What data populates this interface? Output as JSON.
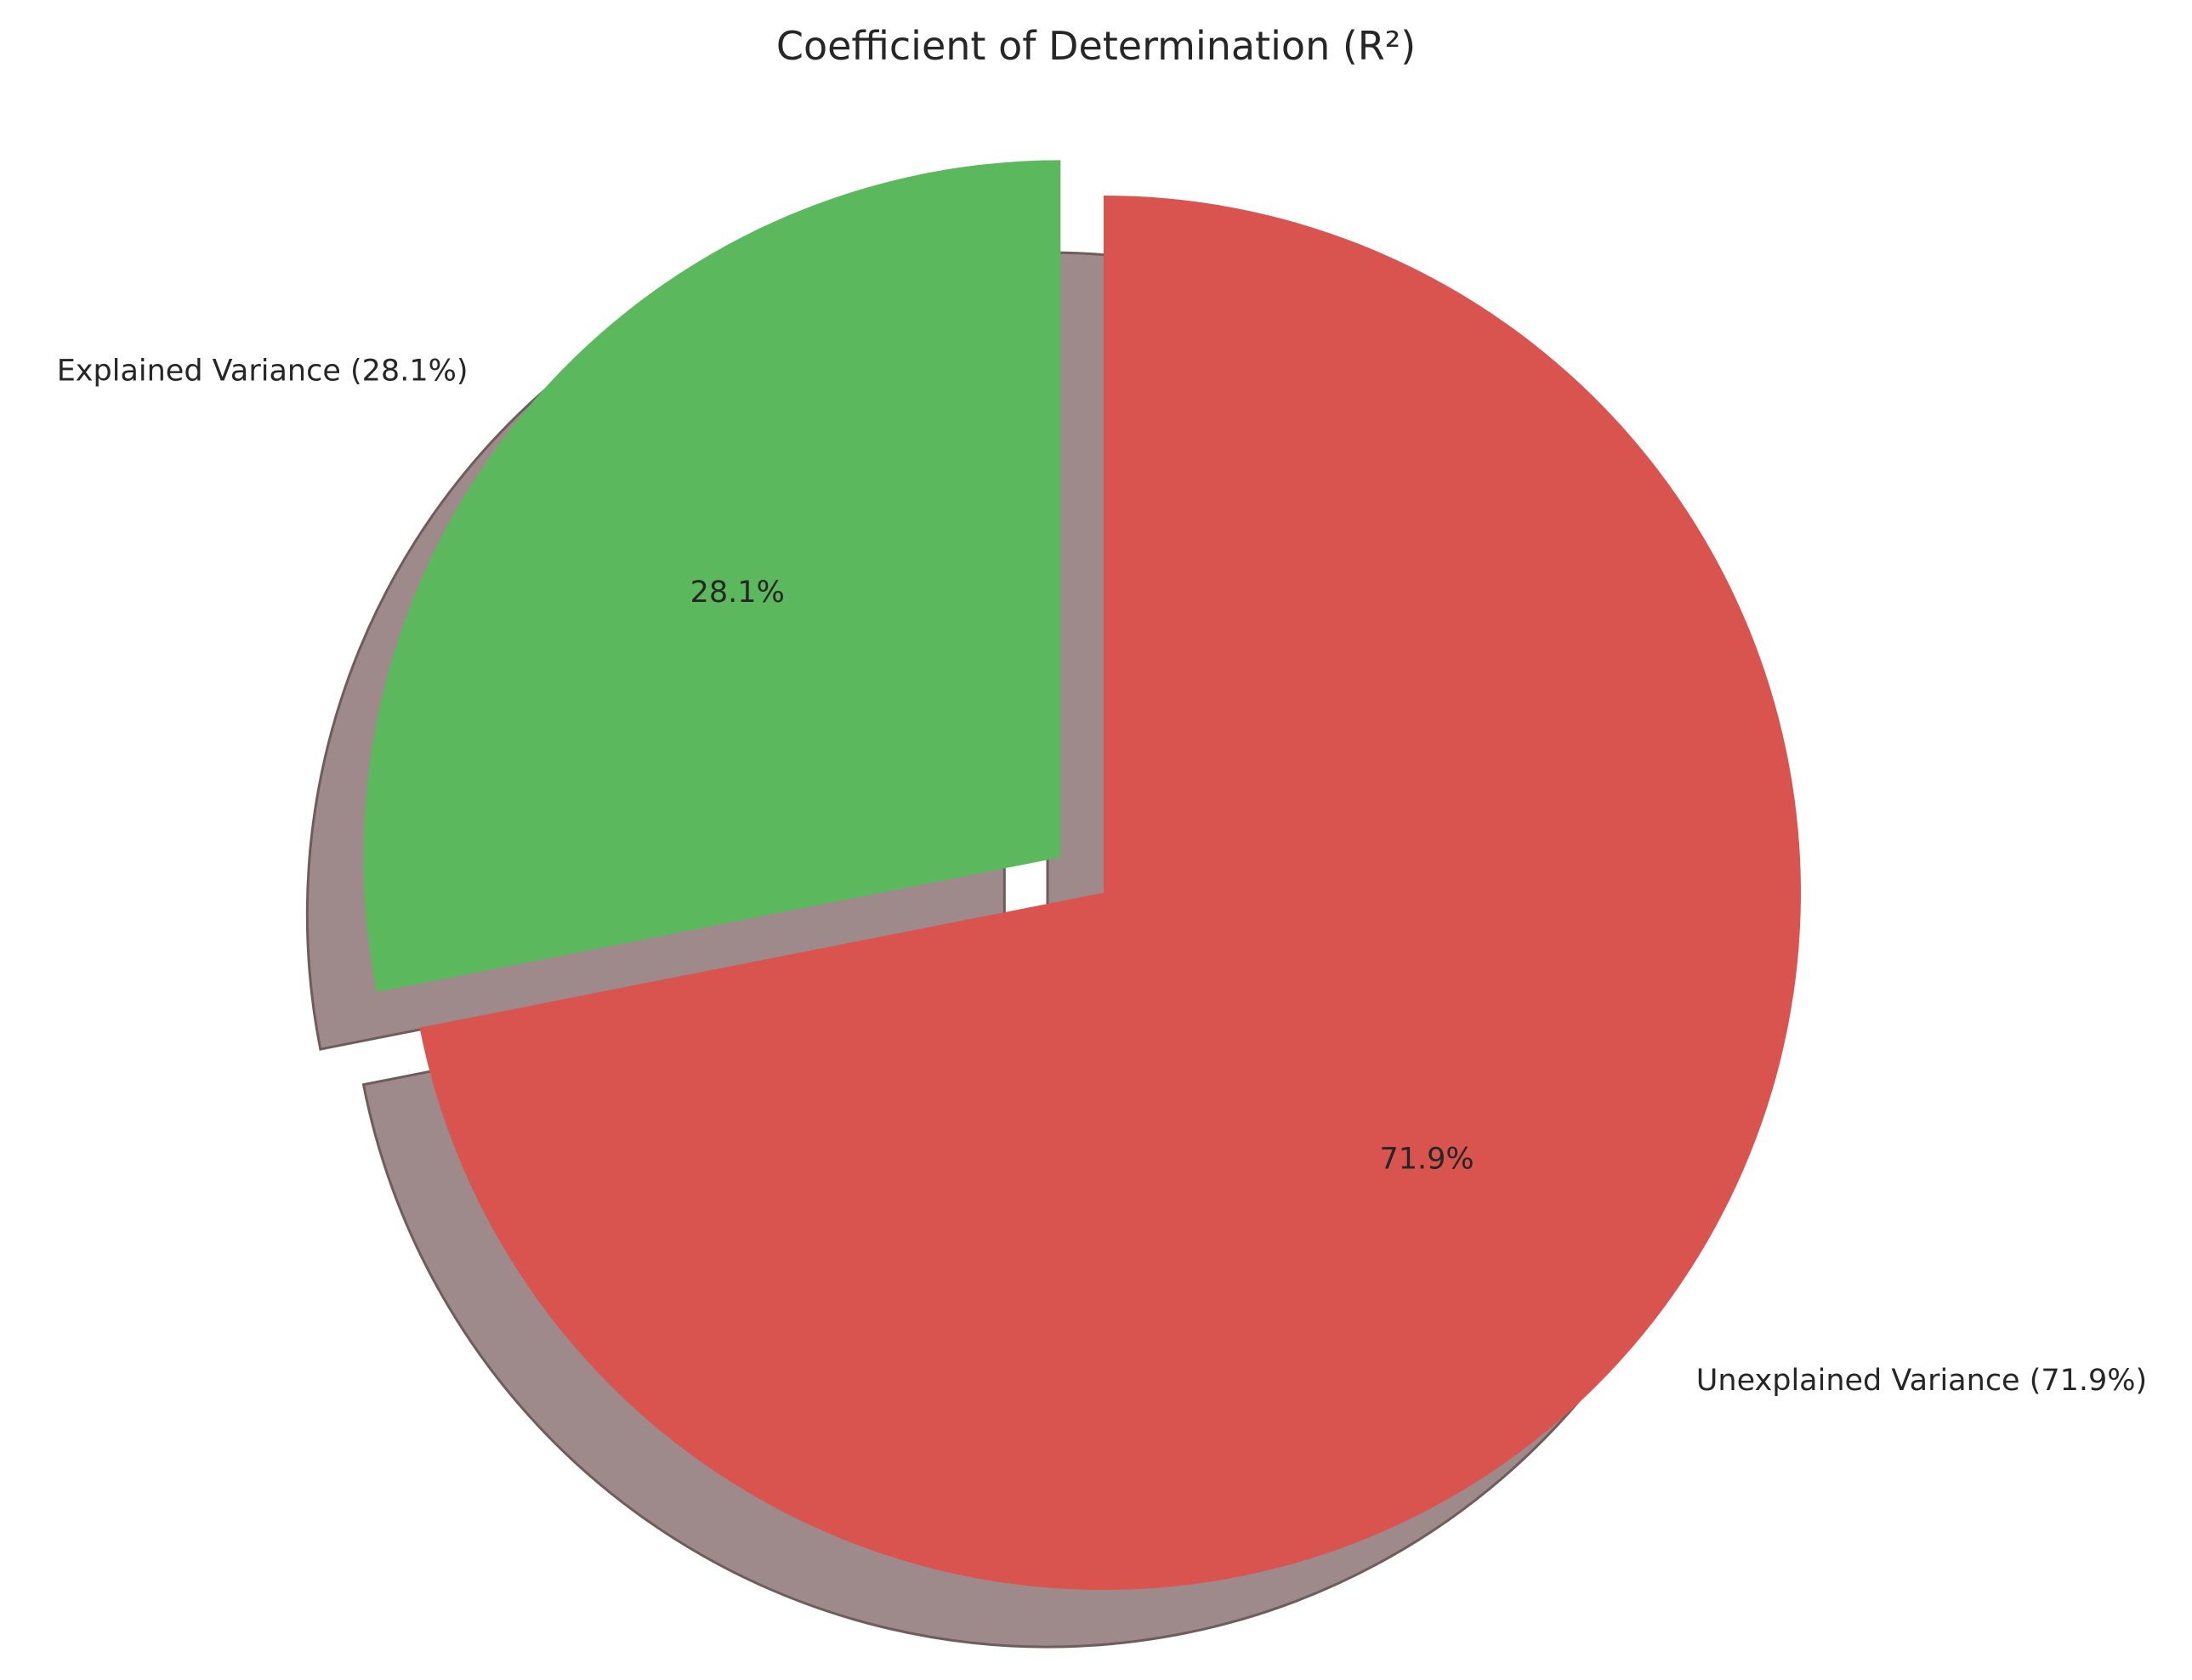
{
  "chart_data": {
    "type": "pie",
    "title": "Coefficient of Determination (R²)",
    "start_angle_deg": 90,
    "direction": "clockwise",
    "shadow": true,
    "slices": [
      {
        "name": "Unexplained Variance",
        "value": 71.9,
        "label": "Unexplained Variance (71.9%)",
        "pct_label": "71.9%",
        "color": "#d9534f",
        "explode": 0
      },
      {
        "name": "Explained Variance",
        "value": 28.1,
        "label": "Explained Variance (28.1%)",
        "pct_label": "28.1%",
        "color": "#5cb85c",
        "explode": 0.08
      }
    ]
  }
}
